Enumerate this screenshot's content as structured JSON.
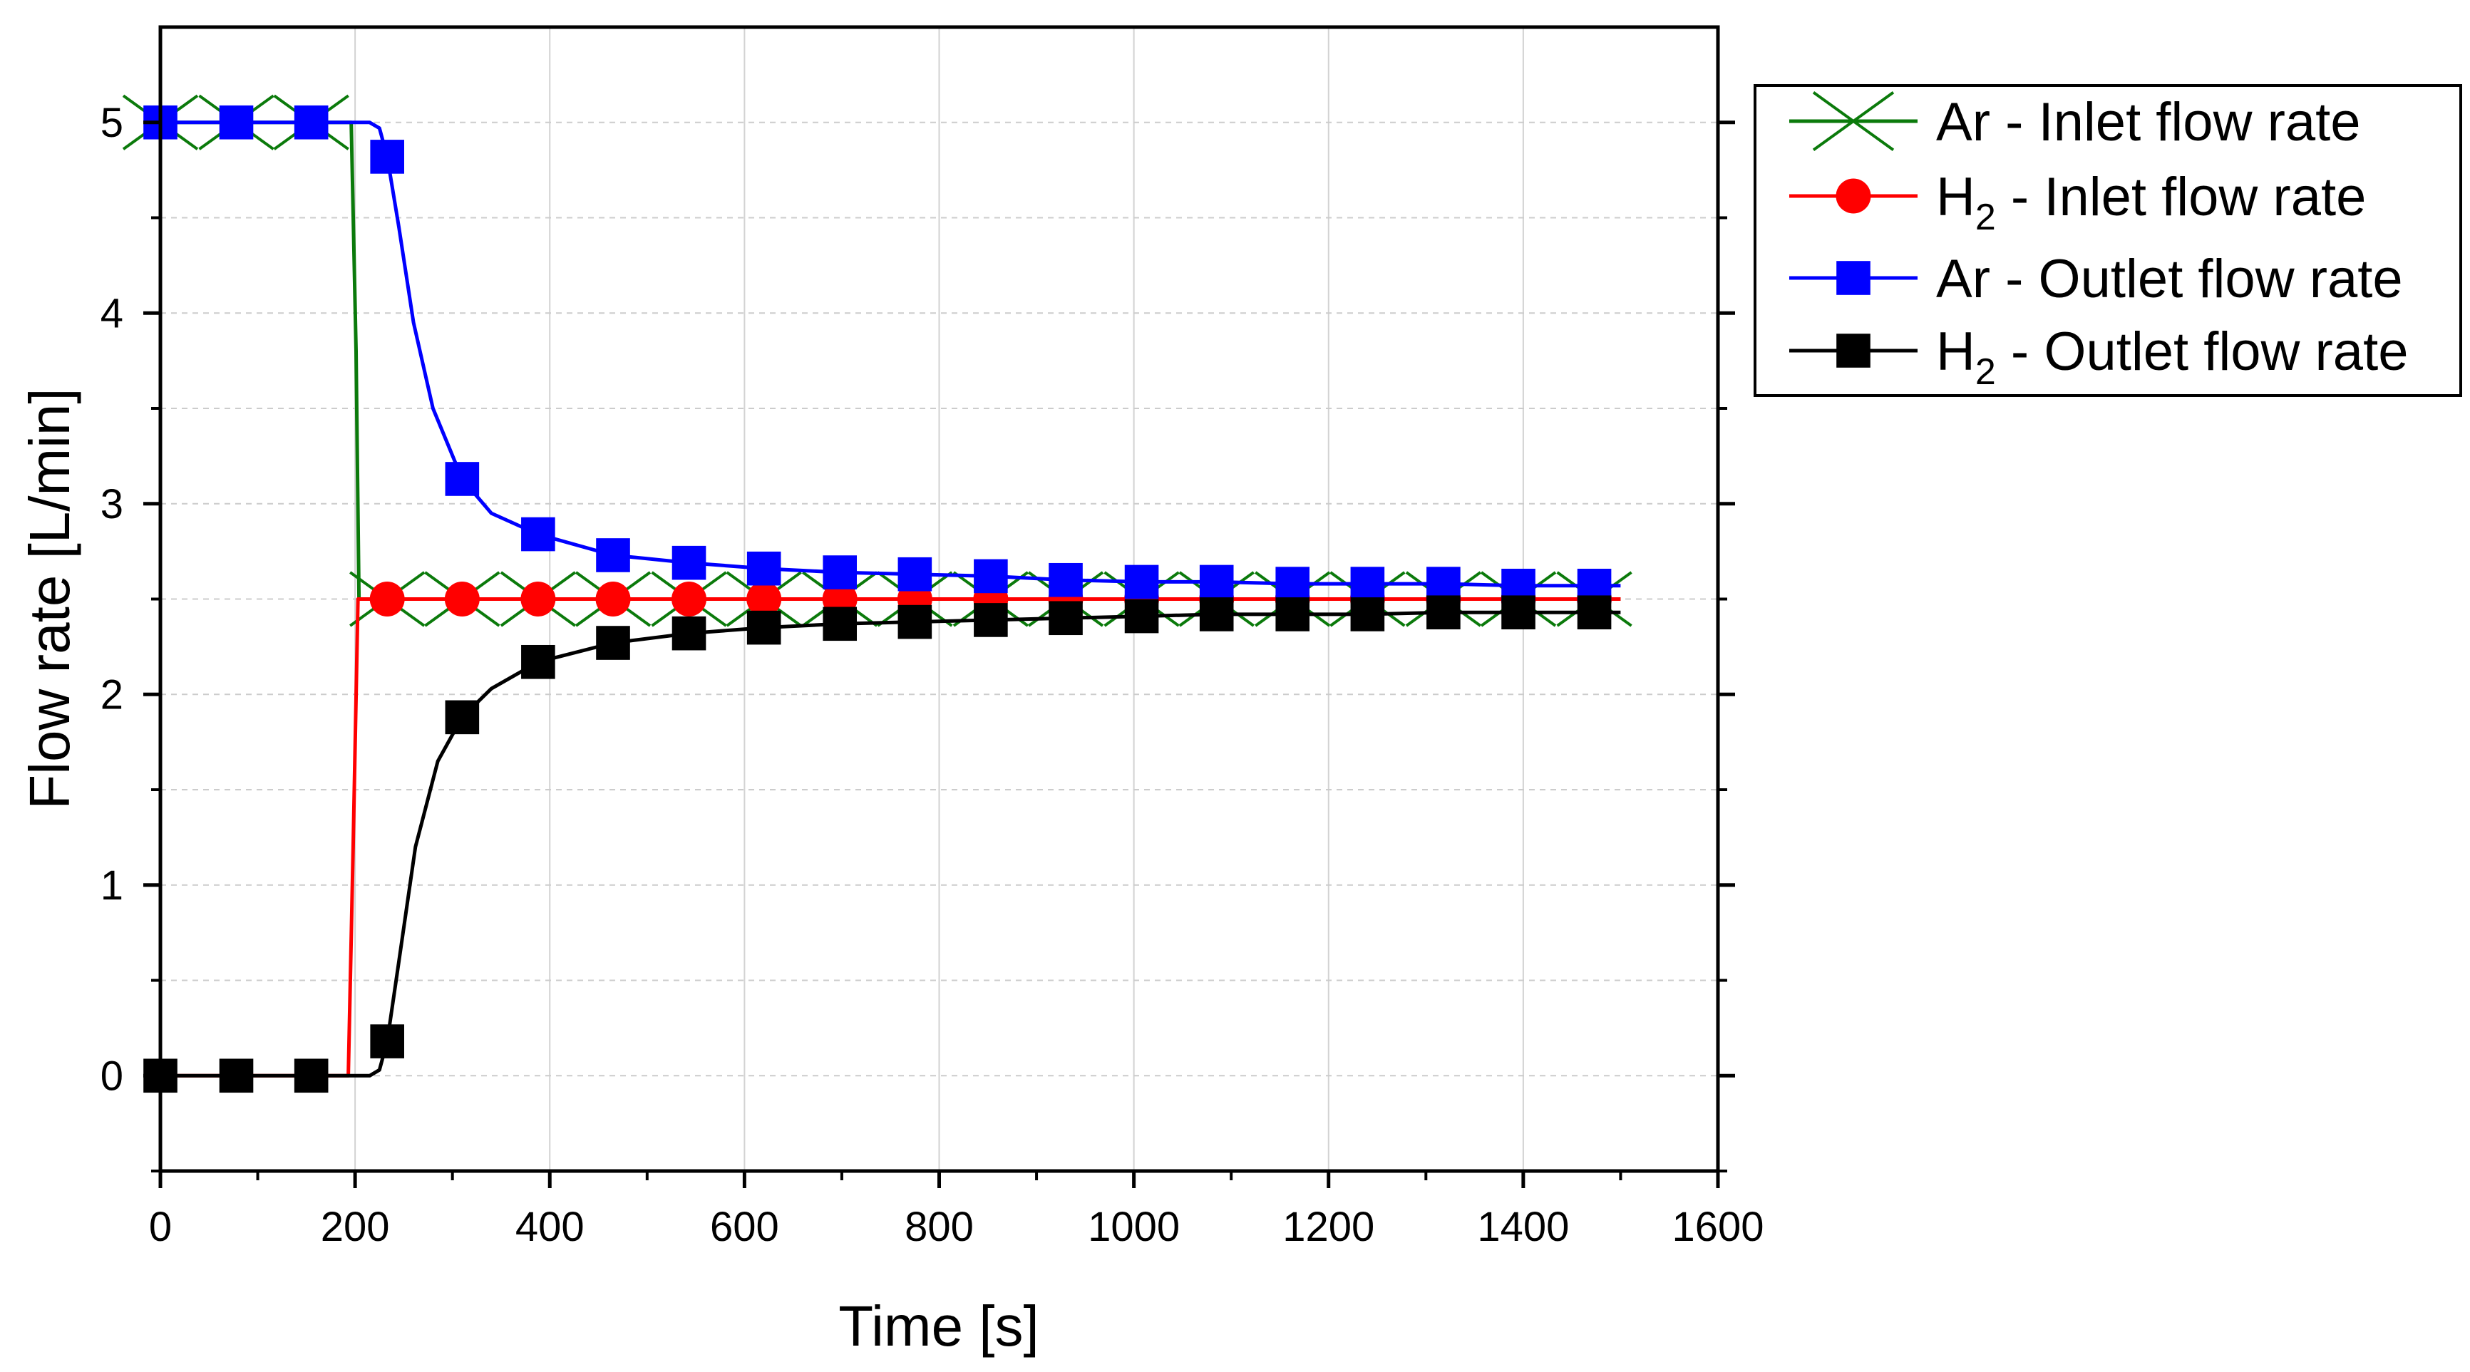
{
  "chart_data": {
    "type": "line",
    "xlabel": "Time [s]",
    "ylabel": "Flow rate [L/min]",
    "xlim": [
      0,
      1600
    ],
    "ylim": [
      -0.5,
      5.5
    ],
    "x_ticks": [
      "0",
      "200",
      "400",
      "600",
      "800",
      "1000",
      "1200",
      "1400",
      "1600"
    ],
    "y_ticks": [
      "0",
      "1",
      "2",
      "3",
      "4",
      "5"
    ],
    "grid": true,
    "legend_position": "outside-top-right",
    "series": [
      {
        "name": "Ar - Inlet flow rate",
        "label_main": "Ar",
        "label_sub": "",
        "label_rest": " - Inlet flow rate",
        "color": "#0b7a0b",
        "marker": "x",
        "line": [
          [
            0,
            5
          ],
          [
            196,
            5
          ],
          [
            201,
            3.8
          ],
          [
            204,
            2.5
          ],
          [
            1500,
            2.5
          ]
        ],
        "marker_points": [
          [
            0,
            5
          ],
          [
            78,
            5
          ],
          [
            155,
            5
          ],
          [
            233,
            2.5
          ],
          [
            310,
            2.5
          ],
          [
            388,
            2.5
          ],
          [
            465,
            2.5
          ],
          [
            543,
            2.5
          ],
          [
            620,
            2.5
          ],
          [
            698,
            2.5
          ],
          [
            775,
            2.5
          ],
          [
            853,
            2.5
          ],
          [
            930,
            2.5
          ],
          [
            1008,
            2.5
          ],
          [
            1085,
            2.5
          ],
          [
            1163,
            2.5
          ],
          [
            1240,
            2.5
          ],
          [
            1318,
            2.5
          ],
          [
            1395,
            2.5
          ],
          [
            1473,
            2.5
          ]
        ]
      },
      {
        "name": "H2 - Inlet flow rate",
        "label_main": "H",
        "label_sub": "2",
        "label_rest": " - Inlet flow rate",
        "color": "#ff0000",
        "marker": "circle",
        "line": [
          [
            0,
            0
          ],
          [
            193,
            0
          ],
          [
            198,
            1.2
          ],
          [
            203,
            2.5
          ],
          [
            1500,
            2.5
          ]
        ],
        "marker_points": [
          [
            233,
            2.5
          ],
          [
            310,
            2.5
          ],
          [
            388,
            2.5
          ],
          [
            465,
            2.5
          ],
          [
            543,
            2.5
          ],
          [
            620,
            2.5
          ],
          [
            698,
            2.5
          ],
          [
            775,
            2.5
          ],
          [
            853,
            2.5
          ],
          [
            930,
            2.5
          ],
          [
            1008,
            2.5
          ],
          [
            1085,
            2.5
          ],
          [
            1163,
            2.5
          ],
          [
            1240,
            2.5
          ],
          [
            1318,
            2.5
          ],
          [
            1395,
            2.5
          ],
          [
            1473,
            2.5
          ]
        ]
      },
      {
        "name": "Ar - Outlet flow rate",
        "label_main": "Ar",
        "label_sub": "",
        "label_rest": " - Outlet flow rate",
        "color": "#0000ff",
        "marker": "square",
        "line": [
          [
            0,
            5
          ],
          [
            215,
            5
          ],
          [
            225,
            4.97
          ],
          [
            233,
            4.82
          ],
          [
            245,
            4.45
          ],
          [
            260,
            3.95
          ],
          [
            280,
            3.5
          ],
          [
            310,
            3.13
          ],
          [
            340,
            2.95
          ],
          [
            388,
            2.84
          ],
          [
            465,
            2.73
          ],
          [
            543,
            2.69
          ],
          [
            620,
            2.66
          ],
          [
            698,
            2.64
          ],
          [
            775,
            2.63
          ],
          [
            853,
            2.62
          ],
          [
            930,
            2.6
          ],
          [
            1008,
            2.59
          ],
          [
            1085,
            2.59
          ],
          [
            1163,
            2.58
          ],
          [
            1240,
            2.58
          ],
          [
            1318,
            2.58
          ],
          [
            1395,
            2.57
          ],
          [
            1500,
            2.57
          ]
        ],
        "marker_points": [
          [
            0,
            5
          ],
          [
            78,
            5
          ],
          [
            155,
            5
          ],
          [
            233,
            4.82
          ],
          [
            310,
            3.13
          ],
          [
            388,
            2.84
          ],
          [
            465,
            2.73
          ],
          [
            543,
            2.69
          ],
          [
            620,
            2.66
          ],
          [
            698,
            2.64
          ],
          [
            775,
            2.63
          ],
          [
            853,
            2.62
          ],
          [
            930,
            2.6
          ],
          [
            1008,
            2.59
          ],
          [
            1085,
            2.59
          ],
          [
            1163,
            2.58
          ],
          [
            1240,
            2.58
          ],
          [
            1318,
            2.58
          ],
          [
            1395,
            2.57
          ],
          [
            1473,
            2.57
          ]
        ]
      },
      {
        "name": "H2 - Outlet flow rate",
        "label_main": "H",
        "label_sub": "2",
        "label_rest": " - Outlet flow rate",
        "color": "#000000",
        "marker": "square",
        "line": [
          [
            0,
            0
          ],
          [
            215,
            0
          ],
          [
            225,
            0.03
          ],
          [
            233,
            0.18
          ],
          [
            245,
            0.6
          ],
          [
            262,
            1.2
          ],
          [
            285,
            1.65
          ],
          [
            310,
            1.88
          ],
          [
            340,
            2.03
          ],
          [
            388,
            2.17
          ],
          [
            465,
            2.27
          ],
          [
            543,
            2.32
          ],
          [
            620,
            2.35
          ],
          [
            698,
            2.37
          ],
          [
            775,
            2.38
          ],
          [
            853,
            2.39
          ],
          [
            930,
            2.4
          ],
          [
            1008,
            2.41
          ],
          [
            1085,
            2.42
          ],
          [
            1163,
            2.42
          ],
          [
            1240,
            2.42
          ],
          [
            1318,
            2.43
          ],
          [
            1395,
            2.43
          ],
          [
            1500,
            2.43
          ]
        ],
        "marker_points": [
          [
            0,
            0
          ],
          [
            78,
            0
          ],
          [
            155,
            0
          ],
          [
            233,
            0.18
          ],
          [
            310,
            1.88
          ],
          [
            388,
            2.17
          ],
          [
            465,
            2.27
          ],
          [
            543,
            2.32
          ],
          [
            620,
            2.35
          ],
          [
            698,
            2.37
          ],
          [
            775,
            2.38
          ],
          [
            853,
            2.39
          ],
          [
            930,
            2.4
          ],
          [
            1008,
            2.41
          ],
          [
            1085,
            2.42
          ],
          [
            1163,
            2.42
          ],
          [
            1240,
            2.42
          ],
          [
            1318,
            2.43
          ],
          [
            1395,
            2.43
          ],
          [
            1473,
            2.43
          ]
        ]
      }
    ]
  }
}
